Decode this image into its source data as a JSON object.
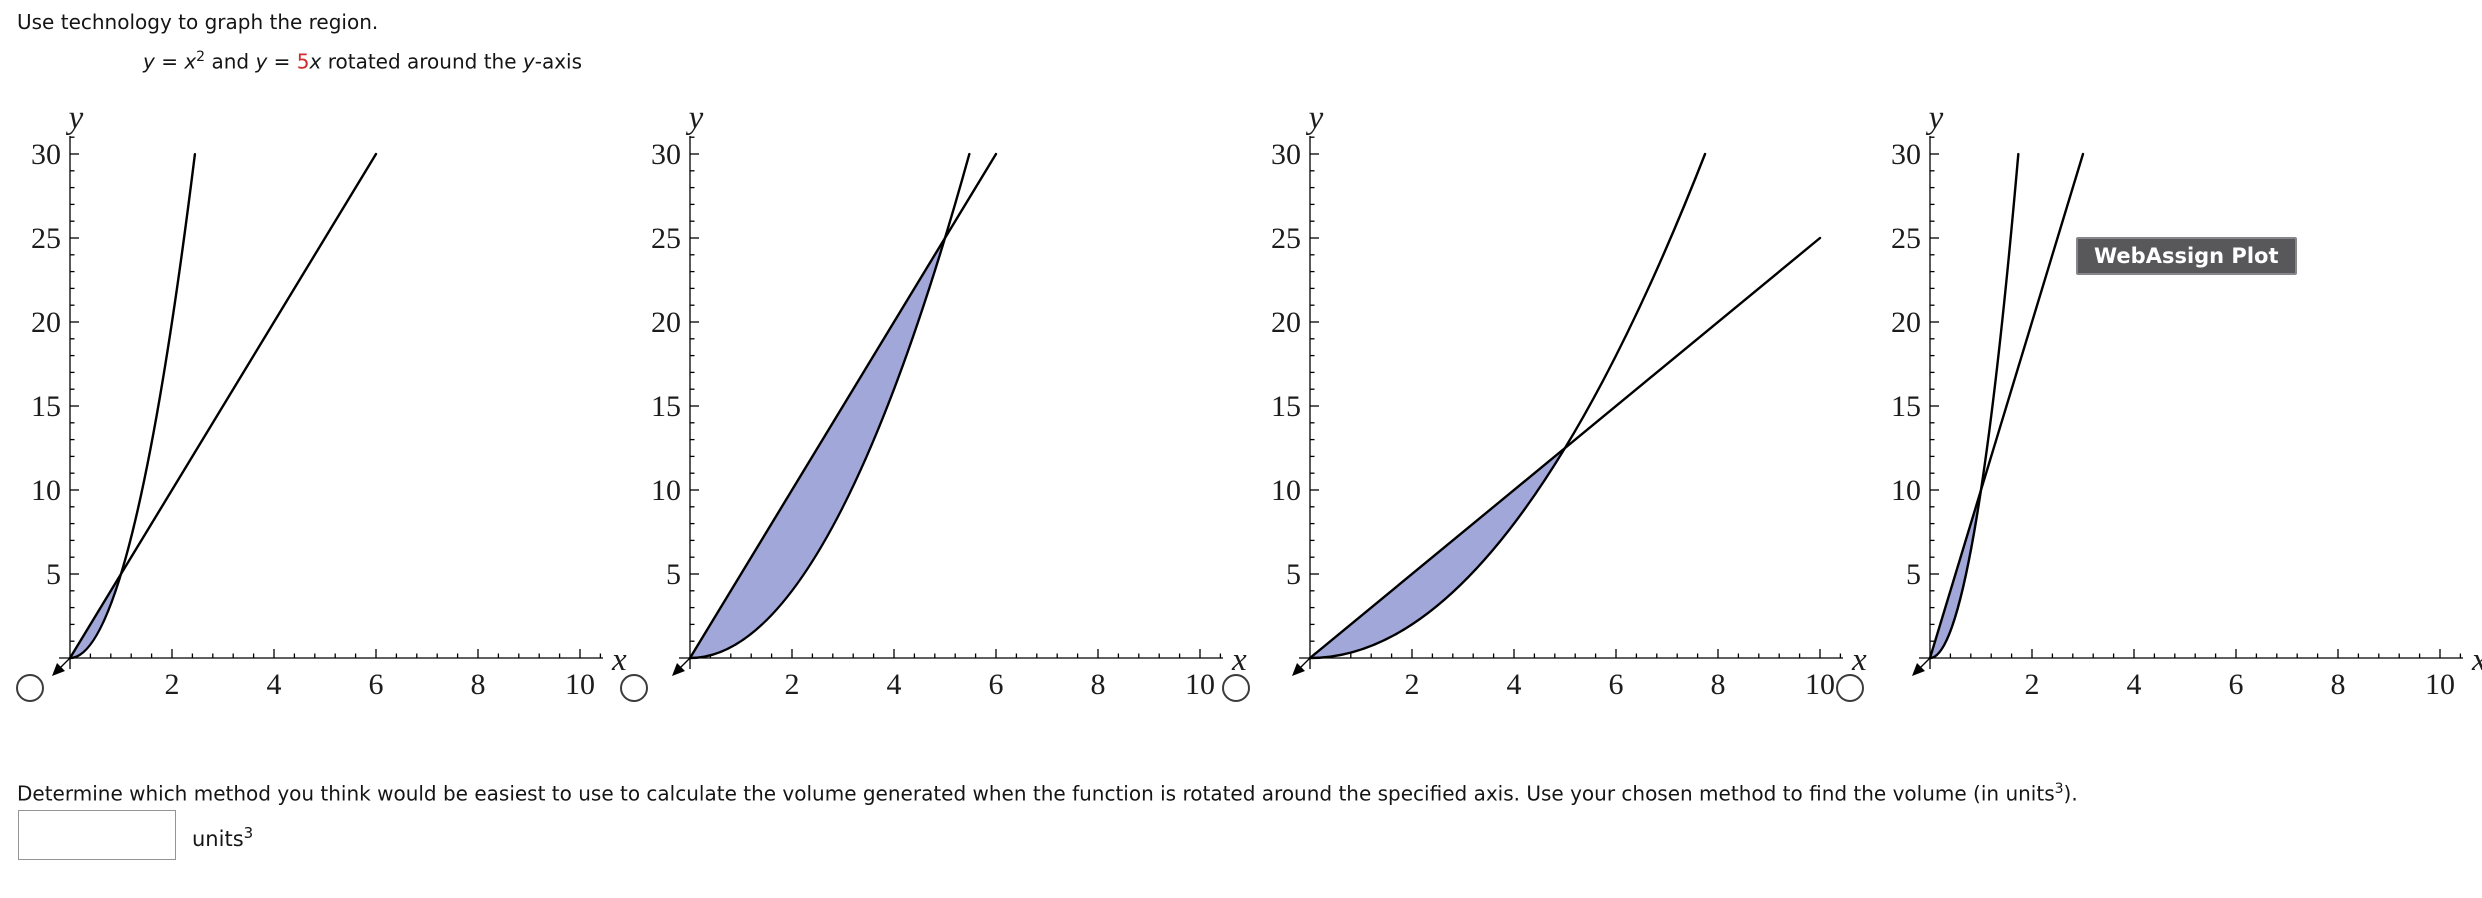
{
  "header": {
    "title": "Use technology to graph the region."
  },
  "equation": {
    "v1": "y",
    "eq1": " = ",
    "base1": "x",
    "exp1": "2",
    "mid": " and ",
    "v2": "y",
    "eq2": " = ",
    "coeff": "5",
    "base2": "x",
    "tail": " rotated around the ",
    "axis_var": "y",
    "axis_suffix": "-axis"
  },
  "badge": {
    "label": "WebAssign Plot"
  },
  "question": {
    "text": "Determine which method you think would be easiest to use to calculate the volume generated when the function is rotated around the specified axis. Use your chosen method to find the volume (in units",
    "sup": "3",
    "close": ")."
  },
  "answer": {
    "value": "",
    "unit_base": "units",
    "unit_exp": "3"
  },
  "colors": {
    "shade_fill": "#a1a8d9",
    "curve_stroke": "#000000",
    "equation_highlight": "#d12c2c",
    "badge_bg": "#58585a",
    "badge_text": "#ffffff"
  },
  "chart_data": [
    {
      "type": "area",
      "option": "A",
      "radio_selected": false,
      "xlabel": "x",
      "ylabel": "y",
      "xlim": [
        0,
        10.5
      ],
      "ylim": [
        0,
        31
      ],
      "xticks": [
        2,
        4,
        6,
        8,
        10
      ],
      "yticks": [
        5,
        10,
        15,
        20,
        25,
        30
      ],
      "x_minor_step": 0.4,
      "y_minor_step": 1,
      "grid": false,
      "curves": [
        {
          "name": "y = 5x",
          "type": "line",
          "slope": 5,
          "x_end": 6
        },
        {
          "name": "y = 5x^2",
          "type": "parabola",
          "coefficient": 5,
          "x_end": 2.449
        }
      ],
      "shaded_region": {
        "upper": "y = 5x",
        "lower": "y = 5x^2",
        "x_from": 0,
        "x_to": 1
      },
      "intersections": [
        [
          0,
          0
        ],
        [
          1,
          5
        ]
      ]
    },
    {
      "type": "area",
      "option": "B",
      "radio_selected": false,
      "xlabel": "x",
      "ylabel": "y",
      "xlim": [
        0,
        10.5
      ],
      "ylim": [
        0,
        31
      ],
      "xticks": [
        2,
        4,
        6,
        8,
        10
      ],
      "yticks": [
        5,
        10,
        15,
        20,
        25,
        30
      ],
      "x_minor_step": 0.4,
      "y_minor_step": 1,
      "grid": false,
      "curves": [
        {
          "name": "y = 5x",
          "type": "line",
          "slope": 5,
          "x_end": 6
        },
        {
          "name": "y = x^2",
          "type": "parabola",
          "coefficient": 1,
          "x_end": 5.477
        }
      ],
      "shaded_region": {
        "upper": "y = 5x",
        "lower": "y = x^2",
        "x_from": 0,
        "x_to": 5
      },
      "intersections": [
        [
          0,
          0
        ],
        [
          5,
          25
        ]
      ]
    },
    {
      "type": "area",
      "option": "C",
      "radio_selected": false,
      "xlabel": "x",
      "ylabel": "y",
      "xlim": [
        0,
        10.5
      ],
      "ylim": [
        0,
        31
      ],
      "xticks": [
        2,
        4,
        6,
        8,
        10
      ],
      "yticks": [
        5,
        10,
        15,
        20,
        25,
        30
      ],
      "x_minor_step": 0.4,
      "y_minor_step": 1,
      "grid": false,
      "curves": [
        {
          "name": "y = 5x/2",
          "type": "line",
          "slope": 2.5,
          "x_end": 10
        },
        {
          "name": "y = x^2/2",
          "type": "parabola",
          "coefficient": 0.5,
          "x_end": 7.746
        }
      ],
      "shaded_region": {
        "upper": "y = 5x/2",
        "lower": "y = x^2/2",
        "x_from": 0,
        "x_to": 5
      },
      "intersections": [
        [
          0,
          0
        ],
        [
          5,
          12.5
        ]
      ]
    },
    {
      "type": "area",
      "option": "D",
      "radio_selected": false,
      "xlabel": "x",
      "ylabel": "y",
      "xlim": [
        0,
        10.5
      ],
      "ylim": [
        0,
        31
      ],
      "xticks": [
        2,
        4,
        6,
        8,
        10
      ],
      "yticks": [
        5,
        10,
        15,
        20,
        25,
        30
      ],
      "x_minor_step": 0.4,
      "y_minor_step": 1,
      "grid": false,
      "curves": [
        {
          "name": "y = 10x",
          "type": "line",
          "slope": 10,
          "x_end": 3
        },
        {
          "name": "y = 10x^2",
          "type": "parabola",
          "coefficient": 10,
          "x_end": 1.732
        }
      ],
      "shaded_region": {
        "upper": "y = 10x",
        "lower": "y = 10x^2",
        "x_from": 0,
        "x_to": 1
      },
      "intersections": [
        [
          0,
          0
        ],
        [
          1,
          10
        ]
      ]
    }
  ]
}
